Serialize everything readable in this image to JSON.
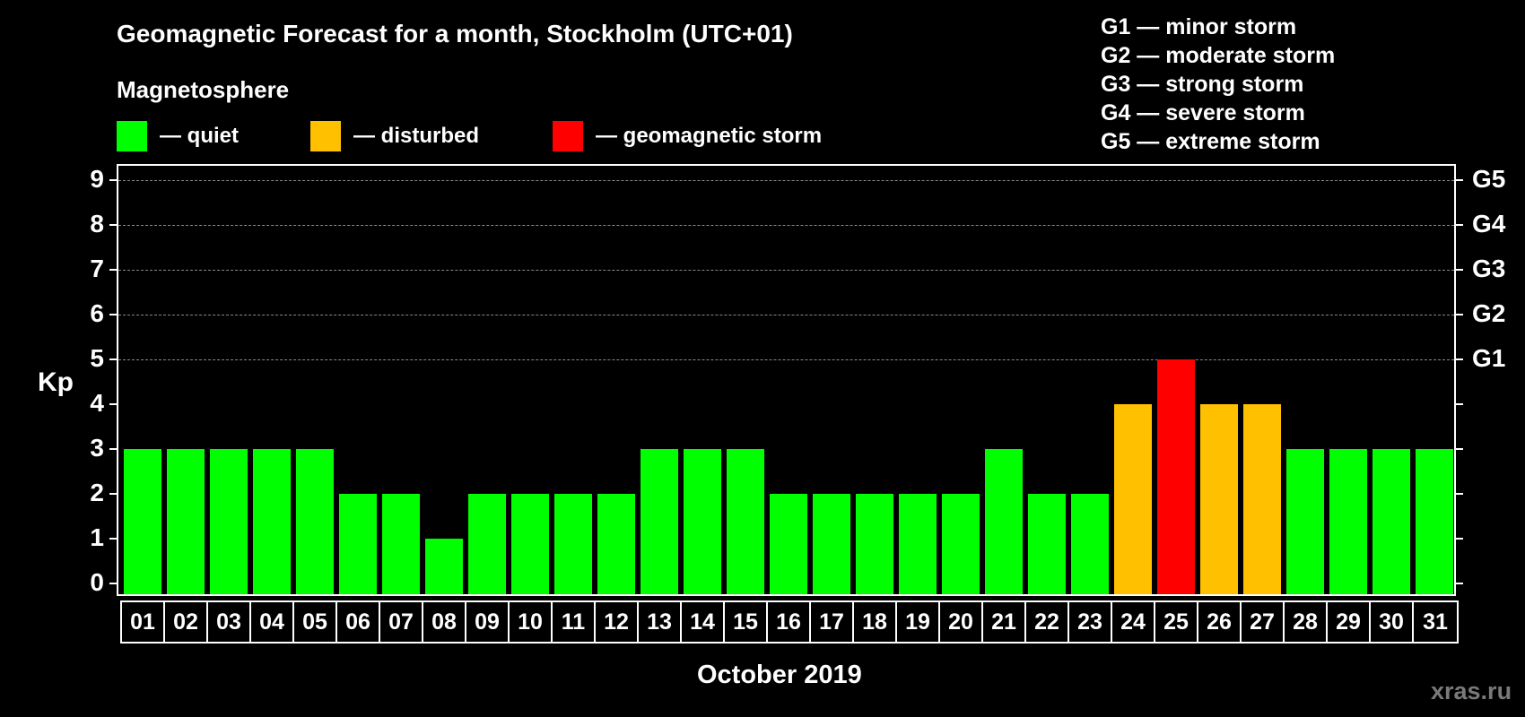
{
  "title": "Geomagnetic Forecast for a month, Stockholm (UTC+01)",
  "subtitle": "Magnetosphere",
  "legend": [
    {
      "label": "— quiet",
      "color": "#00ff00"
    },
    {
      "label": "— disturbed",
      "color": "#ffc000"
    },
    {
      "label": "— geomagnetic storm",
      "color": "#ff0000"
    }
  ],
  "g_legend": [
    "G1 — minor storm",
    "G2 — moderate storm",
    "G3 — strong storm",
    "G4 — severe storm",
    "G5 — extreme storm"
  ],
  "y_axis_label": "Kp",
  "y_ticks": [
    "0",
    "1",
    "2",
    "3",
    "4",
    "5",
    "6",
    "7",
    "8",
    "9"
  ],
  "g_ticks": {
    "5": "G1",
    "6": "G2",
    "7": "G3",
    "8": "G4",
    "9": "G5"
  },
  "x_label": "October 2019",
  "watermark": "xras.ru",
  "colors": {
    "quiet": "#00ff00",
    "disturbed": "#ffc000",
    "storm": "#ff0000",
    "grid": "#888888",
    "background": "#000000"
  },
  "chart_data": {
    "type": "bar",
    "title": "Geomagnetic Forecast for a month, Stockholm (UTC+01)",
    "xlabel": "October 2019",
    "ylabel": "Kp",
    "ylim": [
      0,
      9
    ],
    "grid": "dashed horizontal lines at Kp 5-9",
    "categories": [
      "01",
      "02",
      "03",
      "04",
      "05",
      "06",
      "07",
      "08",
      "09",
      "10",
      "11",
      "12",
      "13",
      "14",
      "15",
      "16",
      "17",
      "18",
      "19",
      "20",
      "21",
      "22",
      "23",
      "24",
      "25",
      "26",
      "27",
      "28",
      "29",
      "30",
      "31"
    ],
    "values": [
      3,
      3,
      3,
      3,
      3,
      2,
      2,
      1,
      2,
      2,
      2,
      2,
      3,
      3,
      3,
      2,
      2,
      2,
      2,
      2,
      3,
      2,
      2,
      4,
      5,
      4,
      4,
      3,
      3,
      3,
      3
    ],
    "status": [
      "quiet",
      "quiet",
      "quiet",
      "quiet",
      "quiet",
      "quiet",
      "quiet",
      "quiet",
      "quiet",
      "quiet",
      "quiet",
      "quiet",
      "quiet",
      "quiet",
      "quiet",
      "quiet",
      "quiet",
      "quiet",
      "quiet",
      "quiet",
      "quiet",
      "quiet",
      "quiet",
      "disturbed",
      "storm",
      "disturbed",
      "disturbed",
      "quiet",
      "quiet",
      "quiet",
      "quiet"
    ],
    "legend": [
      "quiet",
      "disturbed",
      "geomagnetic storm"
    ],
    "secondary_y_labels": {
      "5": "G1",
      "6": "G2",
      "7": "G3",
      "8": "G4",
      "9": "G5"
    }
  }
}
